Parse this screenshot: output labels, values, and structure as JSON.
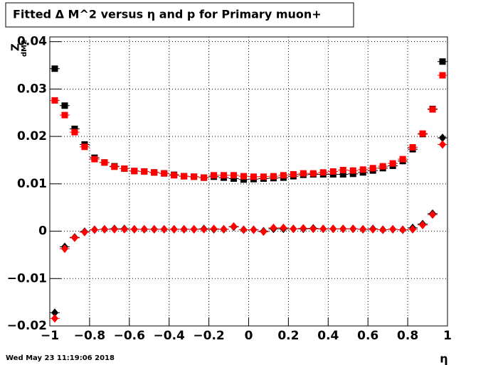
{
  "chart_data": {
    "type": "scatter",
    "title": "Fitted Δ M^2 versus η and p for Primary muon+",
    "x_label": "η",
    "y_label": "Z",
    "y_label_sub": "dM2",
    "timestamp": "Wed May 23 11:19:06 2018",
    "xlim": [
      -1,
      1
    ],
    "ylim": [
      -0.02,
      0.041
    ],
    "xerr": 0.025,
    "grid": true,
    "xticks": [
      {
        "value": -1,
        "label": "−1"
      },
      {
        "value": -0.8,
        "label": "−0.8"
      },
      {
        "value": -0.6,
        "label": "−0.6"
      },
      {
        "value": -0.4,
        "label": "−0.4"
      },
      {
        "value": -0.2,
        "label": "−0.2"
      },
      0,
      0.2,
      0.4,
      0.6,
      0.8,
      1
    ],
    "yticks": [
      {
        "value": -0.02,
        "label": "−0.02"
      },
      {
        "value": -0.01,
        "label": "−0.01"
      },
      0,
      0.01,
      0.02,
      0.03,
      0.04
    ],
    "x": [
      -0.975,
      -0.925,
      -0.875,
      -0.825,
      -0.775,
      -0.725,
      -0.675,
      -0.625,
      -0.575,
      -0.525,
      -0.475,
      -0.425,
      -0.375,
      -0.325,
      -0.275,
      -0.225,
      -0.175,
      -0.125,
      -0.075,
      -0.025,
      0.025,
      0.075,
      0.125,
      0.175,
      0.225,
      0.275,
      0.325,
      0.375,
      0.425,
      0.475,
      0.525,
      0.575,
      0.625,
      0.675,
      0.725,
      0.775,
      0.825,
      0.875,
      0.925,
      0.975
    ],
    "series": [
      {
        "marker": "square",
        "color": "#000000",
        "values": [
          0.0343,
          0.0265,
          0.0216,
          0.0183,
          0.0155,
          0.0145,
          0.0137,
          0.0132,
          0.0127,
          0.0126,
          0.0124,
          0.0122,
          0.0119,
          0.0116,
          0.0115,
          0.0113,
          0.0115,
          0.0113,
          0.0111,
          0.0109,
          0.011,
          0.0111,
          0.0112,
          0.0113,
          0.0116,
          0.0119,
          0.012,
          0.012,
          0.012,
          0.012,
          0.0121,
          0.0124,
          0.0128,
          0.0133,
          0.0138,
          0.0148,
          0.0173,
          0.0205,
          0.0258,
          0.0358
        ]
      },
      {
        "marker": "square",
        "color": "#ff0000",
        "values": [
          0.0276,
          0.0245,
          0.0209,
          0.0178,
          0.0152,
          0.0145,
          0.0136,
          0.0132,
          0.0127,
          0.0126,
          0.0124,
          0.0122,
          0.0118,
          0.0116,
          0.0115,
          0.0113,
          0.0118,
          0.0118,
          0.0118,
          0.0116,
          0.0115,
          0.0115,
          0.0116,
          0.0118,
          0.012,
          0.0122,
          0.0122,
          0.0124,
          0.0126,
          0.0129,
          0.0128,
          0.013,
          0.0133,
          0.0137,
          0.0143,
          0.0152,
          0.0177,
          0.0206,
          0.0257,
          0.0329
        ]
      },
      {
        "marker": "diamond",
        "color": "#000000",
        "values": [
          -0.0172,
          -0.0033,
          -0.0013,
          -0.0001,
          0.0003,
          0.0004,
          0.0005,
          0.0005,
          0.0004,
          0.0004,
          0.0004,
          0.0004,
          0.0004,
          0.0004,
          0.0004,
          0.0005,
          0.0004,
          0.0004,
          0.0009,
          0.0003,
          0.0003,
          0.0,
          0.0005,
          0.0005,
          0.0005,
          0.0005,
          0.0006,
          0.0005,
          0.0005,
          0.0005,
          0.0005,
          0.0004,
          0.0005,
          0.0003,
          0.0004,
          0.0003,
          0.0007,
          0.0015,
          0.0037,
          0.0197
        ]
      },
      {
        "marker": "diamond",
        "color": "#ff0000",
        "values": [
          -0.0184,
          -0.0037,
          -0.0014,
          -0.0002,
          0.0003,
          0.0004,
          0.0004,
          0.0004,
          0.0004,
          0.0004,
          0.0004,
          0.0004,
          0.0004,
          0.0004,
          0.0004,
          0.0004,
          0.0005,
          0.0004,
          0.001,
          0.0003,
          0.0003,
          -0.0001,
          0.0007,
          0.0007,
          0.0005,
          0.0006,
          0.0005,
          0.0005,
          0.0005,
          0.0005,
          0.0005,
          0.0004,
          0.0004,
          0.0003,
          0.0004,
          0.0003,
          0.0004,
          0.0013,
          0.0035,
          0.0183
        ]
      }
    ]
  }
}
